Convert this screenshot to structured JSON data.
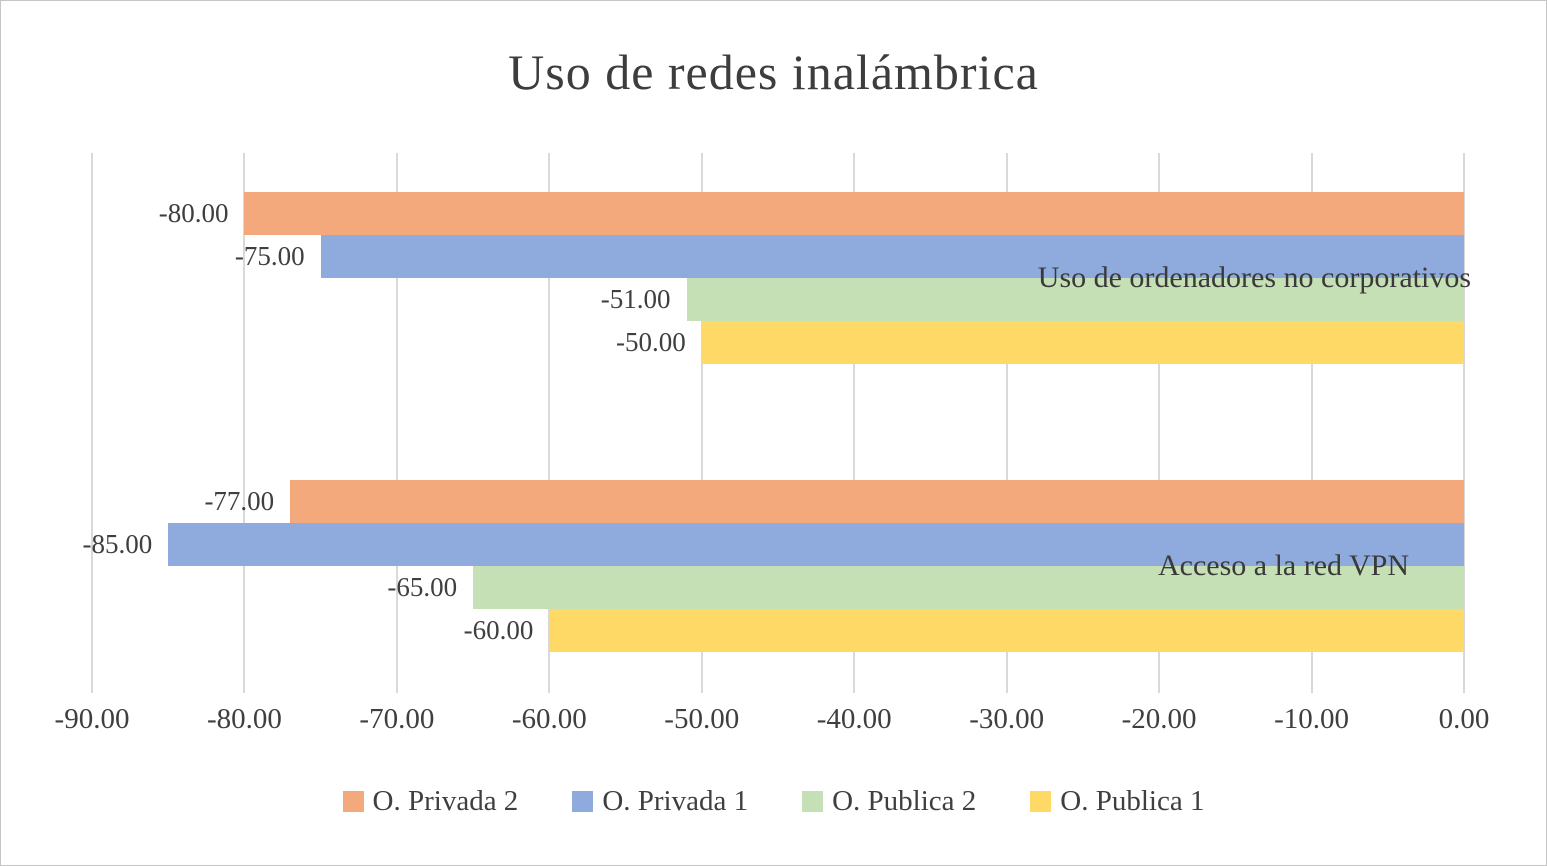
{
  "title": "Uso de redes inalámbrica",
  "colors": {
    "text": "#3f3f3f",
    "gridline": "#d9d9d9",
    "background": "#ffffff",
    "border": "#c5c5c5"
  },
  "chart_data": {
    "type": "bar",
    "orientation": "horizontal",
    "title": "Uso de redes inalámbrica",
    "categories": [
      "Uso de ordenadores no corporativos",
      "Acceso a la red VPN"
    ],
    "series": [
      {
        "name": "O. Privada 2",
        "color": "#F3A97B",
        "values": [
          -80,
          -77
        ]
      },
      {
        "name": "O. Privada 1",
        "color": "#8FAADC",
        "values": [
          -75,
          -85
        ]
      },
      {
        "name": "O. Publica 2",
        "color": "#C5E0B4",
        "values": [
          -51,
          -65
        ]
      },
      {
        "name": "O. Publica 1",
        "color": "#FFD966",
        "values": [
          -50,
          -60
        ]
      }
    ],
    "xlim": [
      -90,
      0
    ],
    "xticks": [
      -90.0,
      -80.0,
      -70.0,
      -60.0,
      -50.0,
      -40.0,
      -30.0,
      -20.0,
      -10.0,
      0.0
    ],
    "tick_label_format": "0.00",
    "data_labels": true,
    "grid": true,
    "legend_position": "bottom"
  }
}
